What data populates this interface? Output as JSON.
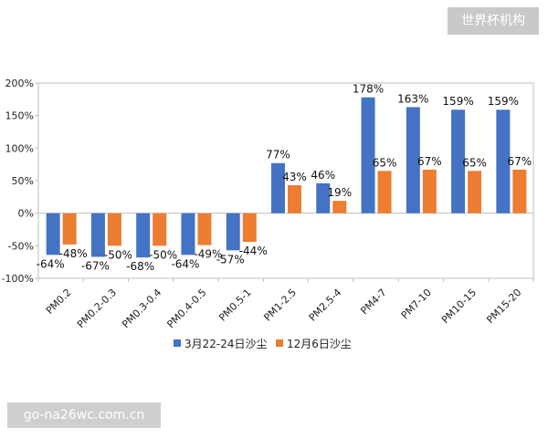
{
  "watermark_top": "世界杯机构",
  "watermark_bottom": "go-na26wc.com.cn",
  "chart_data": {
    "type": "bar",
    "categories": [
      "PM0.2",
      "PM0.2-0.3",
      "PM0.3-0.4",
      "PM0.4-0.5",
      "PM0.5-1",
      "PM1-2.5",
      "PM2.5-4",
      "PM4-7",
      "PM7-10",
      "PM10-15",
      "PM15-20"
    ],
    "series": [
      {
        "name": "3月22-24日沙尘",
        "color": "#4472c4",
        "values": [
          -64,
          -67,
          -68,
          -64,
          -57,
          77,
          46,
          178,
          163,
          159,
          159
        ],
        "labels": [
          "-64%",
          "-67%",
          "-68%",
          "-64%",
          "-57%",
          "77%",
          "46%",
          "178%",
          "163%",
          "159%",
          "159%"
        ]
      },
      {
        "name": "12月6日沙尘",
        "color": "#ed7d31",
        "values": [
          -48,
          -50,
          -50,
          -49,
          -44,
          43,
          19,
          65,
          67,
          65,
          67
        ],
        "labels": [
          "-48%",
          "-50%",
          "-50%",
          "-49%",
          "-44%",
          "43%",
          "19%",
          "65%",
          "67%",
          "65%",
          "67%"
        ]
      }
    ],
    "ylim": [
      -100,
      200
    ],
    "yticks": [
      -100,
      -50,
      0,
      50,
      100,
      150,
      200
    ],
    "ytick_labels": [
      "-100%",
      "-50%",
      "0%",
      "50%",
      "100%",
      "150%",
      "200%"
    ],
    "grid": false,
    "legend_position": "bottom"
  }
}
